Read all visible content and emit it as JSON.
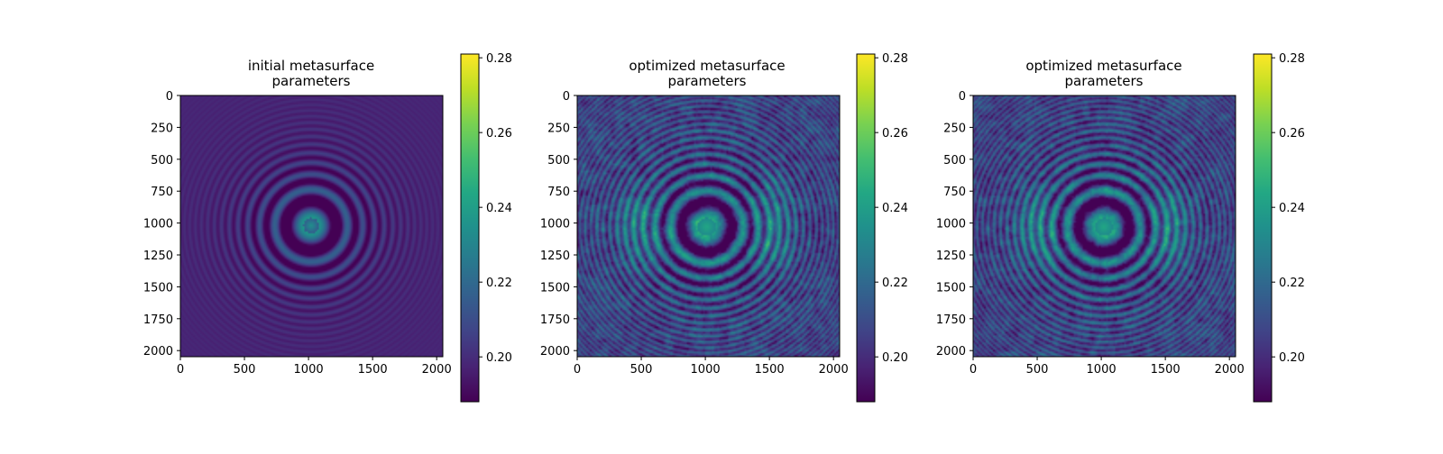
{
  "figure": {
    "background": "#ffffff",
    "colormap": "viridis"
  },
  "chart_data": [
    {
      "type": "heatmap",
      "title": "initial metasurface\nparameters",
      "xlim": [
        0,
        2048
      ],
      "ylim": [
        2048,
        0
      ],
      "xticks": [
        0,
        500,
        1000,
        1500,
        2000
      ],
      "xtick_labels": [
        "0",
        "500",
        "1000",
        "1500",
        "2000"
      ],
      "yticks": [
        0,
        250,
        500,
        750,
        1000,
        1250,
        1500,
        1750,
        2000
      ],
      "ytick_labels": [
        "0",
        "250",
        "500",
        "750",
        "1000",
        "1250",
        "1500",
        "1750",
        "2000"
      ],
      "colorbar": {
        "range": [
          0.188,
          0.281
        ],
        "ticks": [
          0.2,
          0.22,
          0.24,
          0.26,
          0.28
        ],
        "tick_labels": [
          "0.20",
          "0.22",
          "0.24",
          "0.26",
          "0.28"
        ]
      },
      "pattern": "concentric rings centered at ~(1020, 1020); background ≈0.20; ring amplitude decays with radius"
    },
    {
      "type": "heatmap",
      "title": "optimized metasurface\nparameters",
      "xlim": [
        0,
        2048
      ],
      "ylim": [
        2048,
        0
      ],
      "xticks": [
        0,
        500,
        1000,
        1500,
        2000
      ],
      "xtick_labels": [
        "0",
        "500",
        "1000",
        "1500",
        "2000"
      ],
      "yticks": [
        0,
        250,
        500,
        750,
        1000,
        1250,
        1500,
        1750,
        2000
      ],
      "ytick_labels": [
        "0",
        "250",
        "500",
        "750",
        "1000",
        "1250",
        "1500",
        "1750",
        "2000"
      ],
      "colorbar": {
        "range": [
          0.188,
          0.281
        ],
        "ticks": [
          0.2,
          0.22,
          0.24,
          0.26,
          0.28
        ],
        "tick_labels": [
          "0.20",
          "0.22",
          "0.24",
          "0.26",
          "0.28"
        ]
      },
      "pattern": "concentric rings centered at ~(1010, 1030) with speckled texture; background ≈0.21-0.23"
    },
    {
      "type": "heatmap",
      "title": "optimized metasurface\nparameters",
      "xlim": [
        0,
        2048
      ],
      "ylim": [
        2048,
        0
      ],
      "xticks": [
        0,
        500,
        1000,
        1500,
        2000
      ],
      "xtick_labels": [
        "0",
        "500",
        "1000",
        "1500",
        "2000"
      ],
      "yticks": [
        0,
        250,
        500,
        750,
        1000,
        1250,
        1500,
        1750,
        2000
      ],
      "ytick_labels": [
        "0",
        "250",
        "500",
        "750",
        "1000",
        "1250",
        "1500",
        "1750",
        "2000"
      ],
      "colorbar": {
        "range": [
          0.188,
          0.281
        ],
        "ticks": [
          0.2,
          0.22,
          0.24,
          0.26,
          0.28
        ],
        "tick_labels": [
          "0.20",
          "0.22",
          "0.24",
          "0.26",
          "0.28"
        ]
      },
      "pattern": "concentric rings centered at ~(1020, 1030) with speckled texture; background ≈0.21-0.23"
    }
  ]
}
